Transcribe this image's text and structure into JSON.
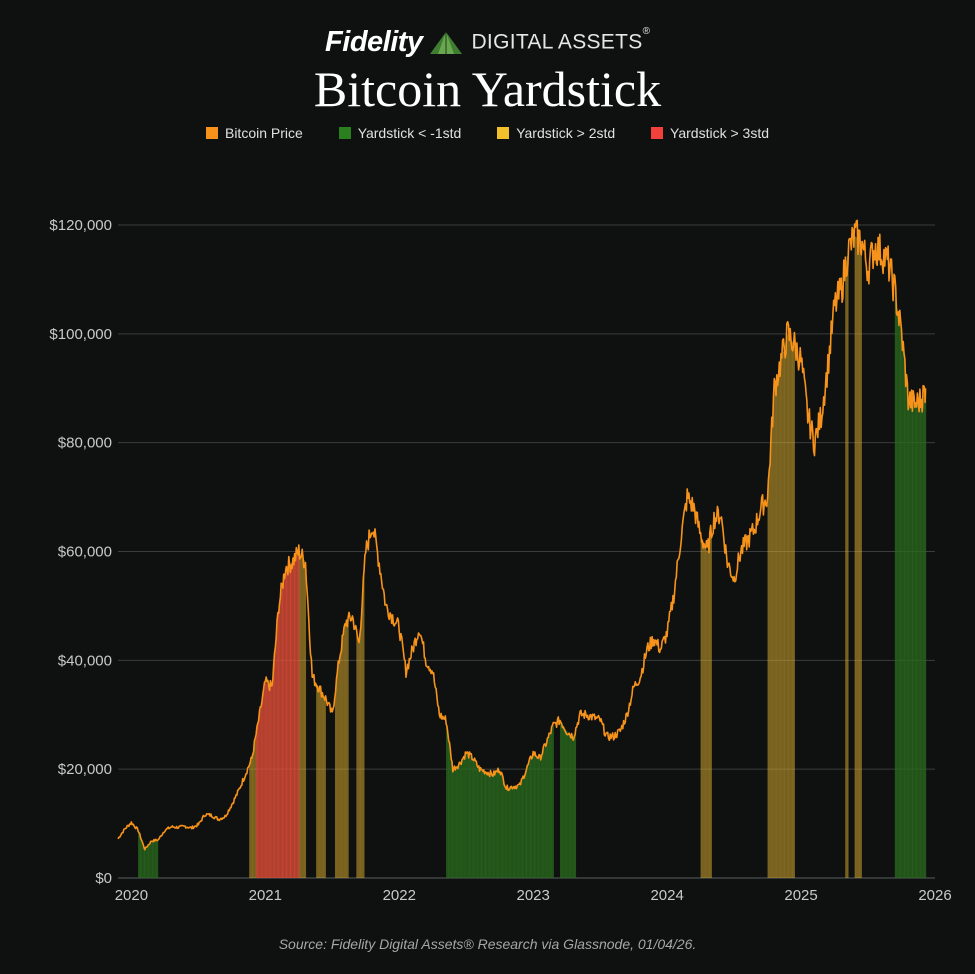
{
  "header": {
    "brand_name": "Fidelity",
    "brand_suffix": "DIGITAL ASSETS",
    "brand_mark": "®"
  },
  "colors": {
    "background": "#0f1111",
    "price": "#f7931a",
    "green": "#2a6b1e",
    "yellow": "#e0b030",
    "red": "#e8503a",
    "grid": "#3a3d3d"
  },
  "chart_data": {
    "type": "line",
    "title": "Bitcoin Yardstick",
    "legend_placement": "top",
    "grid": true,
    "xlim": [
      2019.9,
      2026.0
    ],
    "ylim": [
      0,
      125000
    ],
    "x_ticks": [
      "2020",
      "2021",
      "2022",
      "2023",
      "2024",
      "2025",
      "2026"
    ],
    "y_ticks": [
      "$0",
      "$20,000",
      "$40,000",
      "$60,000",
      "$80,000",
      "$100,000",
      "$120,000"
    ],
    "legend": [
      "Bitcoin Price",
      "Yardstick < -1std",
      "Yardstick > 2std",
      "Yardstick > 3std"
    ],
    "series": [
      {
        "name": "Bitcoin Price",
        "x": [
          2019.9,
          2019.95,
          2020.0,
          2020.05,
          2020.1,
          2020.15,
          2020.2,
          2020.25,
          2020.3,
          2020.35,
          2020.4,
          2020.45,
          2020.5,
          2020.55,
          2020.6,
          2020.65,
          2020.7,
          2020.75,
          2020.8,
          2020.85,
          2020.9,
          2020.95,
          2021.0,
          2021.05,
          2021.1,
          2021.15,
          2021.2,
          2021.25,
          2021.3,
          2021.35,
          2021.4,
          2021.45,
          2021.5,
          2021.55,
          2021.6,
          2021.65,
          2021.7,
          2021.75,
          2021.8,
          2021.85,
          2021.9,
          2021.95,
          2022.0,
          2022.05,
          2022.1,
          2022.15,
          2022.2,
          2022.25,
          2022.3,
          2022.35,
          2022.4,
          2022.45,
          2022.5,
          2022.55,
          2022.6,
          2022.65,
          2022.7,
          2022.75,
          2022.8,
          2022.85,
          2022.9,
          2022.95,
          2023.0,
          2023.05,
          2023.1,
          2023.15,
          2023.2,
          2023.25,
          2023.3,
          2023.35,
          2023.4,
          2023.45,
          2023.5,
          2023.55,
          2023.6,
          2023.65,
          2023.7,
          2023.75,
          2023.8,
          2023.85,
          2023.9,
          2023.95,
          2024.0,
          2024.05,
          2024.1,
          2024.15,
          2024.2,
          2024.25,
          2024.3,
          2024.35,
          2024.4,
          2024.45,
          2024.5,
          2024.55,
          2024.6,
          2024.65,
          2024.7,
          2024.75,
          2024.8,
          2024.85,
          2024.9,
          2024.95,
          2025.0,
          2025.05,
          2025.1,
          2025.15,
          2025.2,
          2025.25,
          2025.3,
          2025.35,
          2025.4,
          2025.45,
          2025.5,
          2025.55,
          2025.6,
          2025.65,
          2025.7,
          2025.75,
          2025.8,
          2025.85,
          2025.9,
          2025.93
        ],
        "y": [
          7200,
          9000,
          10200,
          8800,
          5300,
          6800,
          7000,
          8800,
          9400,
          9300,
          9500,
          9200,
          9800,
          11700,
          11500,
          10800,
          11300,
          13500,
          16000,
          19000,
          22000,
          29000,
          36000,
          35000,
          50000,
          57000,
          58000,
          60000,
          58000,
          37000,
          35000,
          33000,
          30000,
          40000,
          47000,
          48000,
          43000,
          60000,
          65000,
          58000,
          50000,
          48000,
          46000,
          38000,
          42000,
          46000,
          40000,
          38000,
          30000,
          29000,
          20000,
          21000,
          23000,
          22000,
          20000,
          19500,
          19000,
          20000,
          16500,
          16800,
          17000,
          20000,
          23000,
          22000,
          25000,
          28000,
          29000,
          27000,
          26000,
          30000,
          30000,
          29500,
          29000,
          26000,
          26000,
          27000,
          30000,
          35000,
          37000,
          42000,
          44000,
          42000,
          45000,
          52000,
          62000,
          70000,
          68000,
          63000,
          60000,
          66000,
          67000,
          58000,
          55000,
          60000,
          62000,
          64000,
          68000,
          70000,
          90000,
          95000,
          100000,
          98000,
          95000,
          85000,
          80000,
          85000,
          94000,
          105000,
          108000,
          115000,
          118000,
          117000,
          112000,
          116000,
          115000,
          113000,
          108000,
          100000,
          88000,
          87000,
          88000,
          90000
        ]
      },
      {
        "name": "Yardstick < -1std",
        "spans": [
          [
            2020.05,
            2020.2
          ],
          [
            2022.35,
            2023.15
          ],
          [
            2023.2,
            2023.32
          ],
          [
            2025.7,
            2025.93
          ]
        ]
      },
      {
        "name": "Yardstick > 2std",
        "spans": [
          [
            2020.88,
            2020.93
          ],
          [
            2021.25,
            2021.3
          ],
          [
            2021.38,
            2021.45
          ],
          [
            2021.52,
            2021.62
          ],
          [
            2021.68,
            2021.74
          ],
          [
            2024.25,
            2024.33
          ],
          [
            2024.75,
            2024.95
          ],
          [
            2025.33,
            2025.35
          ],
          [
            2025.4,
            2025.45
          ]
        ]
      },
      {
        "name": "Yardstick > 3std",
        "spans": [
          [
            2020.93,
            2021.25
          ]
        ]
      }
    ]
  },
  "footer": {
    "source": "Source: Fidelity Digital Assets® Research via Glassnode, 01/04/26."
  }
}
